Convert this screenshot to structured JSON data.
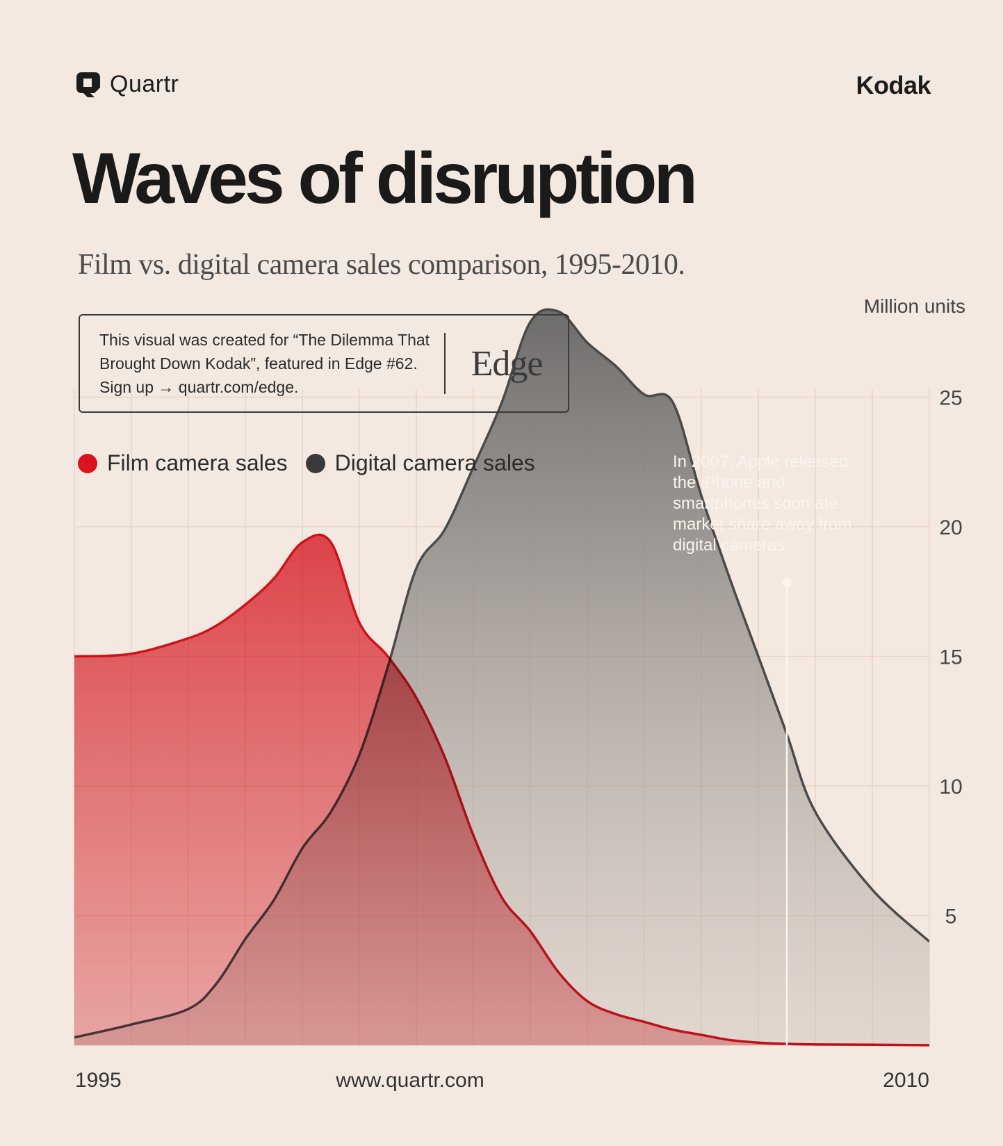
{
  "brand": {
    "name": "Quartr"
  },
  "company": "Kodak",
  "title": "Waves of disruption",
  "subtitle": "Film vs. digital camera sales comparison, 1995-2010.",
  "info_box": {
    "text": "This visual was created for “The Dilemma That Brought Down Kodak”, featured in Edge #62. Sign up → quartr.com/edge.",
    "logo": "Edge"
  },
  "annotation": "In 2007, Apple released the iPhone and smartphones soon ate market share away from digital cameras",
  "footer": {
    "start": "1995",
    "center": "www.quartr.com",
    "end": "2010"
  },
  "colors": {
    "film": "#d9141f",
    "digital": "#4a4a4a",
    "background": "#f4e9e0",
    "grid": "#ecd3c6"
  },
  "chart_data": {
    "type": "area",
    "ylabel": "Million units",
    "ylim": [
      0,
      28.3
    ],
    "xlim": [
      1995,
      2010
    ],
    "y_ticks": [
      5,
      10,
      15,
      20,
      25
    ],
    "x_ticks": [
      "1995",
      "2010"
    ],
    "annotation_year": 2007,
    "legend": "top-left",
    "grid": true,
    "series": [
      {
        "name": "Film camera sales",
        "color": "#d9141f",
        "x": [
          1995,
          1996,
          1997,
          1997.5,
          1998,
          1998.5,
          1999,
          1999.5,
          2000,
          2000.5,
          2001,
          2001.5,
          2002,
          2002.5,
          2003,
          2003.5,
          2004,
          2004.5,
          2005,
          2005.5,
          2006,
          2006.5,
          2007,
          2007.5,
          2008,
          2009,
          2010
        ],
        "values": [
          15,
          15.1,
          15.7,
          16.2,
          17,
          18,
          19.4,
          19.4,
          16.3,
          15,
          13.4,
          11.1,
          8.1,
          5.7,
          4.4,
          2.8,
          1.7,
          1.2,
          0.9,
          0.6,
          0.4,
          0.2,
          0.1,
          0.05,
          0.03,
          0.02,
          0
        ]
      },
      {
        "name": "Digital camera sales",
        "color": "#4a4a4a",
        "x": [
          1995,
          1996,
          1997,
          1997.5,
          1998,
          1998.5,
          1999,
          1999.5,
          2000,
          2000.5,
          2001,
          2001.5,
          2002,
          2002.5,
          2003,
          2003.5,
          2004,
          2004.5,
          2005,
          2005.5,
          2006,
          2006.5,
          2007,
          2007.5,
          2008,
          2009,
          2010
        ],
        "values": [
          0.3,
          0.8,
          1.4,
          2.4,
          4.1,
          5.6,
          7.6,
          9,
          11.2,
          14.6,
          18.4,
          19.9,
          22.3,
          24.8,
          27.9,
          28.3,
          27.1,
          26.2,
          25.1,
          24.8,
          21.2,
          18,
          15,
          12,
          9,
          6,
          4
        ]
      }
    ]
  }
}
